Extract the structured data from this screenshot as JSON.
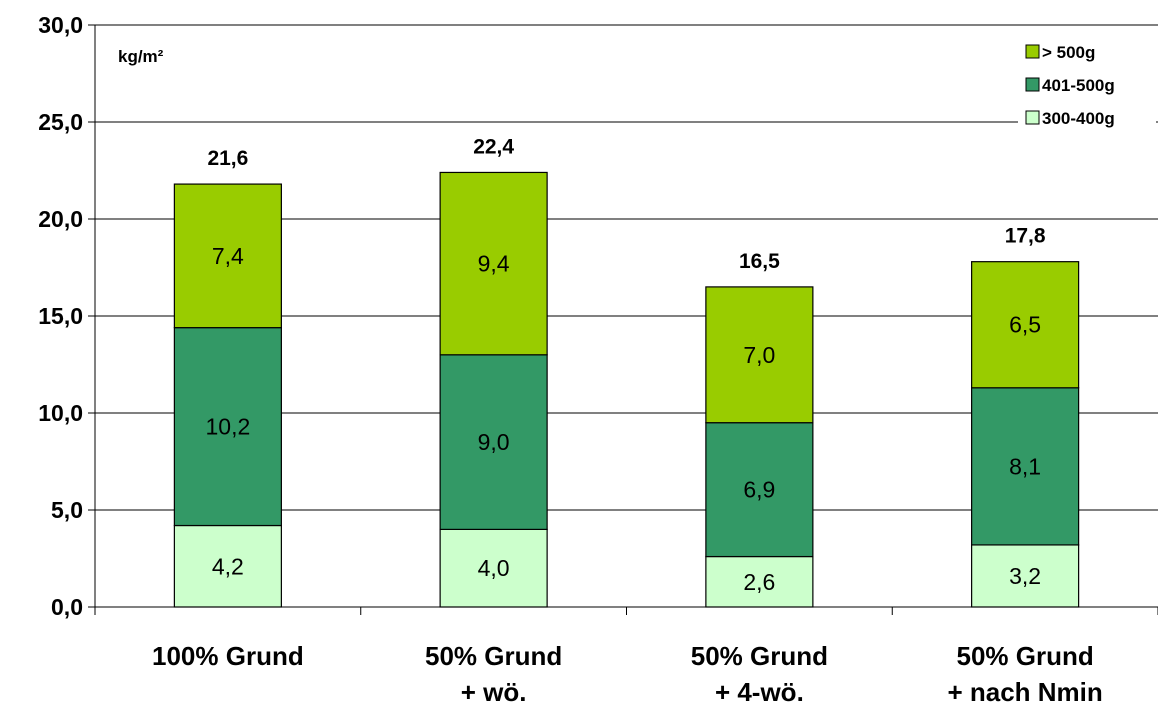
{
  "chart_data": {
    "type": "bar",
    "stacked": true,
    "unit_label": "kg/m²",
    "categories": [
      [
        "100% Grund"
      ],
      [
        "50% Grund",
        "+ wö."
      ],
      [
        "50% Grund",
        "+ 4-wö."
      ],
      [
        "50% Grund",
        "+ nach Nmin"
      ]
    ],
    "series": [
      {
        "name": "300-400g",
        "color": "#ccffcc",
        "values": [
          4.2,
          4.0,
          2.6,
          3.2
        ],
        "labels": [
          "4,2",
          "4,0",
          "2,6",
          "3,2"
        ]
      },
      {
        "name": "401-500g",
        "color": "#339966",
        "values": [
          10.2,
          9.0,
          6.9,
          8.1
        ],
        "labels": [
          "10,2",
          "9,0",
          "6,9",
          "8,1"
        ]
      },
      {
        "name": "> 500g",
        "color": "#99cc00",
        "values": [
          7.4,
          9.4,
          7.0,
          6.5
        ],
        "labels": [
          "7,4",
          "9,4",
          "7,0",
          "6,5"
        ]
      }
    ],
    "totals": [
      21.6,
      22.4,
      16.5,
      17.8
    ],
    "total_labels": [
      "21,6",
      "22,4",
      "16,5",
      "17,8"
    ],
    "ylim": [
      0,
      30
    ],
    "yticks": [
      0,
      5,
      10,
      15,
      20,
      25,
      30
    ],
    "ytick_labels": [
      "0,0",
      "5,0",
      "10,0",
      "15,0",
      "20,0",
      "25,0",
      "30,0"
    ],
    "grid": true,
    "legend": {
      "placement": "top-right",
      "order": [
        "> 500g",
        "401-500g",
        "300-400g"
      ]
    }
  }
}
